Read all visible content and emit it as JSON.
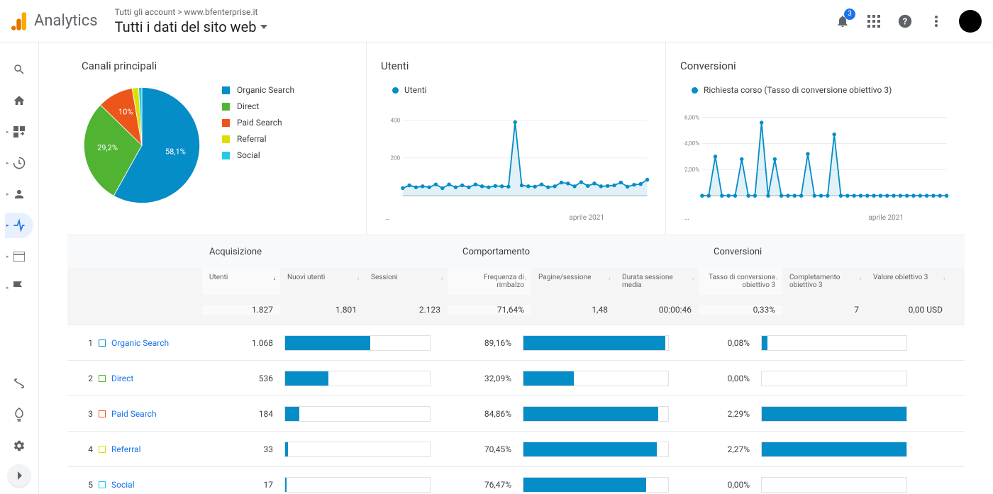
{
  "header": {
    "product": "Analytics",
    "breadcrumb_all": "Tutti gli account",
    "breadcrumb_sep": ">",
    "breadcrumb_site": "www.bfenterprise.it",
    "property": "Tutti i dati del sito web",
    "notif_count": "3"
  },
  "colors": {
    "blue": "#058dc7",
    "green": "#50b432",
    "orange": "#ed561b",
    "yellow": "#dddf00",
    "cyan": "#24cbe5",
    "link": "#1a73e8"
  },
  "pie": {
    "title": "Canali principali",
    "slices": [
      {
        "label": "Organic Search",
        "color": "#058dc7",
        "pct": 58.1,
        "pct_label": "58,1%"
      },
      {
        "label": "Direct",
        "color": "#50b432",
        "pct": 29.2,
        "pct_label": "29,2%"
      },
      {
        "label": "Paid Search",
        "color": "#ed561b",
        "pct": 10.0,
        "pct_label": "10%"
      },
      {
        "label": "Referral",
        "color": "#dddf00",
        "pct": 1.8,
        "pct_label": ""
      },
      {
        "label": "Social",
        "color": "#24cbe5",
        "pct": 0.9,
        "pct_label": ""
      }
    ]
  },
  "users_chart": {
    "title": "Utenti",
    "legend": "Utenti",
    "color": "#058dc7",
    "y_ticks": [
      "400",
      "200"
    ],
    "x_start": "…",
    "x_end": "aprile 2021",
    "values": [
      40,
      55,
      45,
      50,
      45,
      60,
      40,
      60,
      45,
      55,
      45,
      60,
      50,
      45,
      52,
      50,
      48,
      390,
      55,
      50,
      48,
      60,
      45,
      50,
      70,
      65,
      50,
      72,
      52,
      65,
      50,
      52,
      55,
      70,
      48,
      58,
      62,
      85
    ]
  },
  "conv_chart": {
    "title": "Conversioni",
    "legend": "Richiesta corso (Tasso di conversione obiettivo 3)",
    "color": "#058dc7",
    "y_ticks": [
      "6,00%",
      "4,00%",
      "2,00%"
    ],
    "x_start": "…",
    "x_end": "aprile 2021",
    "values": [
      0,
      0,
      3.0,
      0,
      0,
      0,
      2.8,
      0,
      0,
      5.6,
      0,
      2.8,
      0,
      0,
      0,
      0,
      3.2,
      0,
      0,
      0,
      4.7,
      0,
      0,
      0,
      0,
      0,
      0,
      0,
      0,
      0,
      0,
      0,
      0,
      0,
      0,
      0,
      0,
      0
    ]
  },
  "table": {
    "group_headers": {
      "acq": "Acquisizione",
      "comp": "Comportamento",
      "conv": "Conversioni"
    },
    "cols": {
      "users": "Utenti",
      "newusers": "Nuovi utenti",
      "sessions": "Sessioni",
      "bounce": "Frequenza di rimbalzo",
      "pages": "Pagine/sessione",
      "duration": "Durata sessione media",
      "convrate": "Tasso di conversione obiettivo 3",
      "goal": "Completamento obiettivo 3",
      "value": "Valore obiettivo 3"
    },
    "totals": {
      "users": "1.827",
      "newusers": "1.801",
      "sessions": "2.123",
      "bounce": "71,64%",
      "pages": "1,48",
      "duration": "00:00:46",
      "convrate": "0,33%",
      "goal": "7",
      "value": "0,00 USD"
    },
    "rows": [
      {
        "n": "1",
        "channel": "Organic Search",
        "color": "#058dc7",
        "users": "1.068",
        "newusers_pct": 59,
        "bounce": "89,16%",
        "pages_pct": 98,
        "convrate": "0,08%",
        "goal_pct": 4
      },
      {
        "n": "2",
        "channel": "Direct",
        "color": "#50b432",
        "users": "536",
        "newusers_pct": 30,
        "bounce": "32,09%",
        "pages_pct": 35,
        "convrate": "0,00%",
        "goal_pct": 0
      },
      {
        "n": "3",
        "channel": "Paid Search",
        "color": "#ed561b",
        "users": "184",
        "newusers_pct": 10,
        "bounce": "84,86%",
        "pages_pct": 93,
        "convrate": "2,29%",
        "goal_pct": 100
      },
      {
        "n": "4",
        "channel": "Referral",
        "color": "#dddf00",
        "users": "33",
        "newusers_pct": 2,
        "bounce": "70,45%",
        "pages_pct": 92,
        "convrate": "2,27%",
        "goal_pct": 100
      },
      {
        "n": "5",
        "channel": "Social",
        "color": "#24cbe5",
        "users": "17",
        "newusers_pct": 1,
        "bounce": "76,47%",
        "pages_pct": 85,
        "convrate": "0,00%",
        "goal_pct": 0
      }
    ]
  }
}
